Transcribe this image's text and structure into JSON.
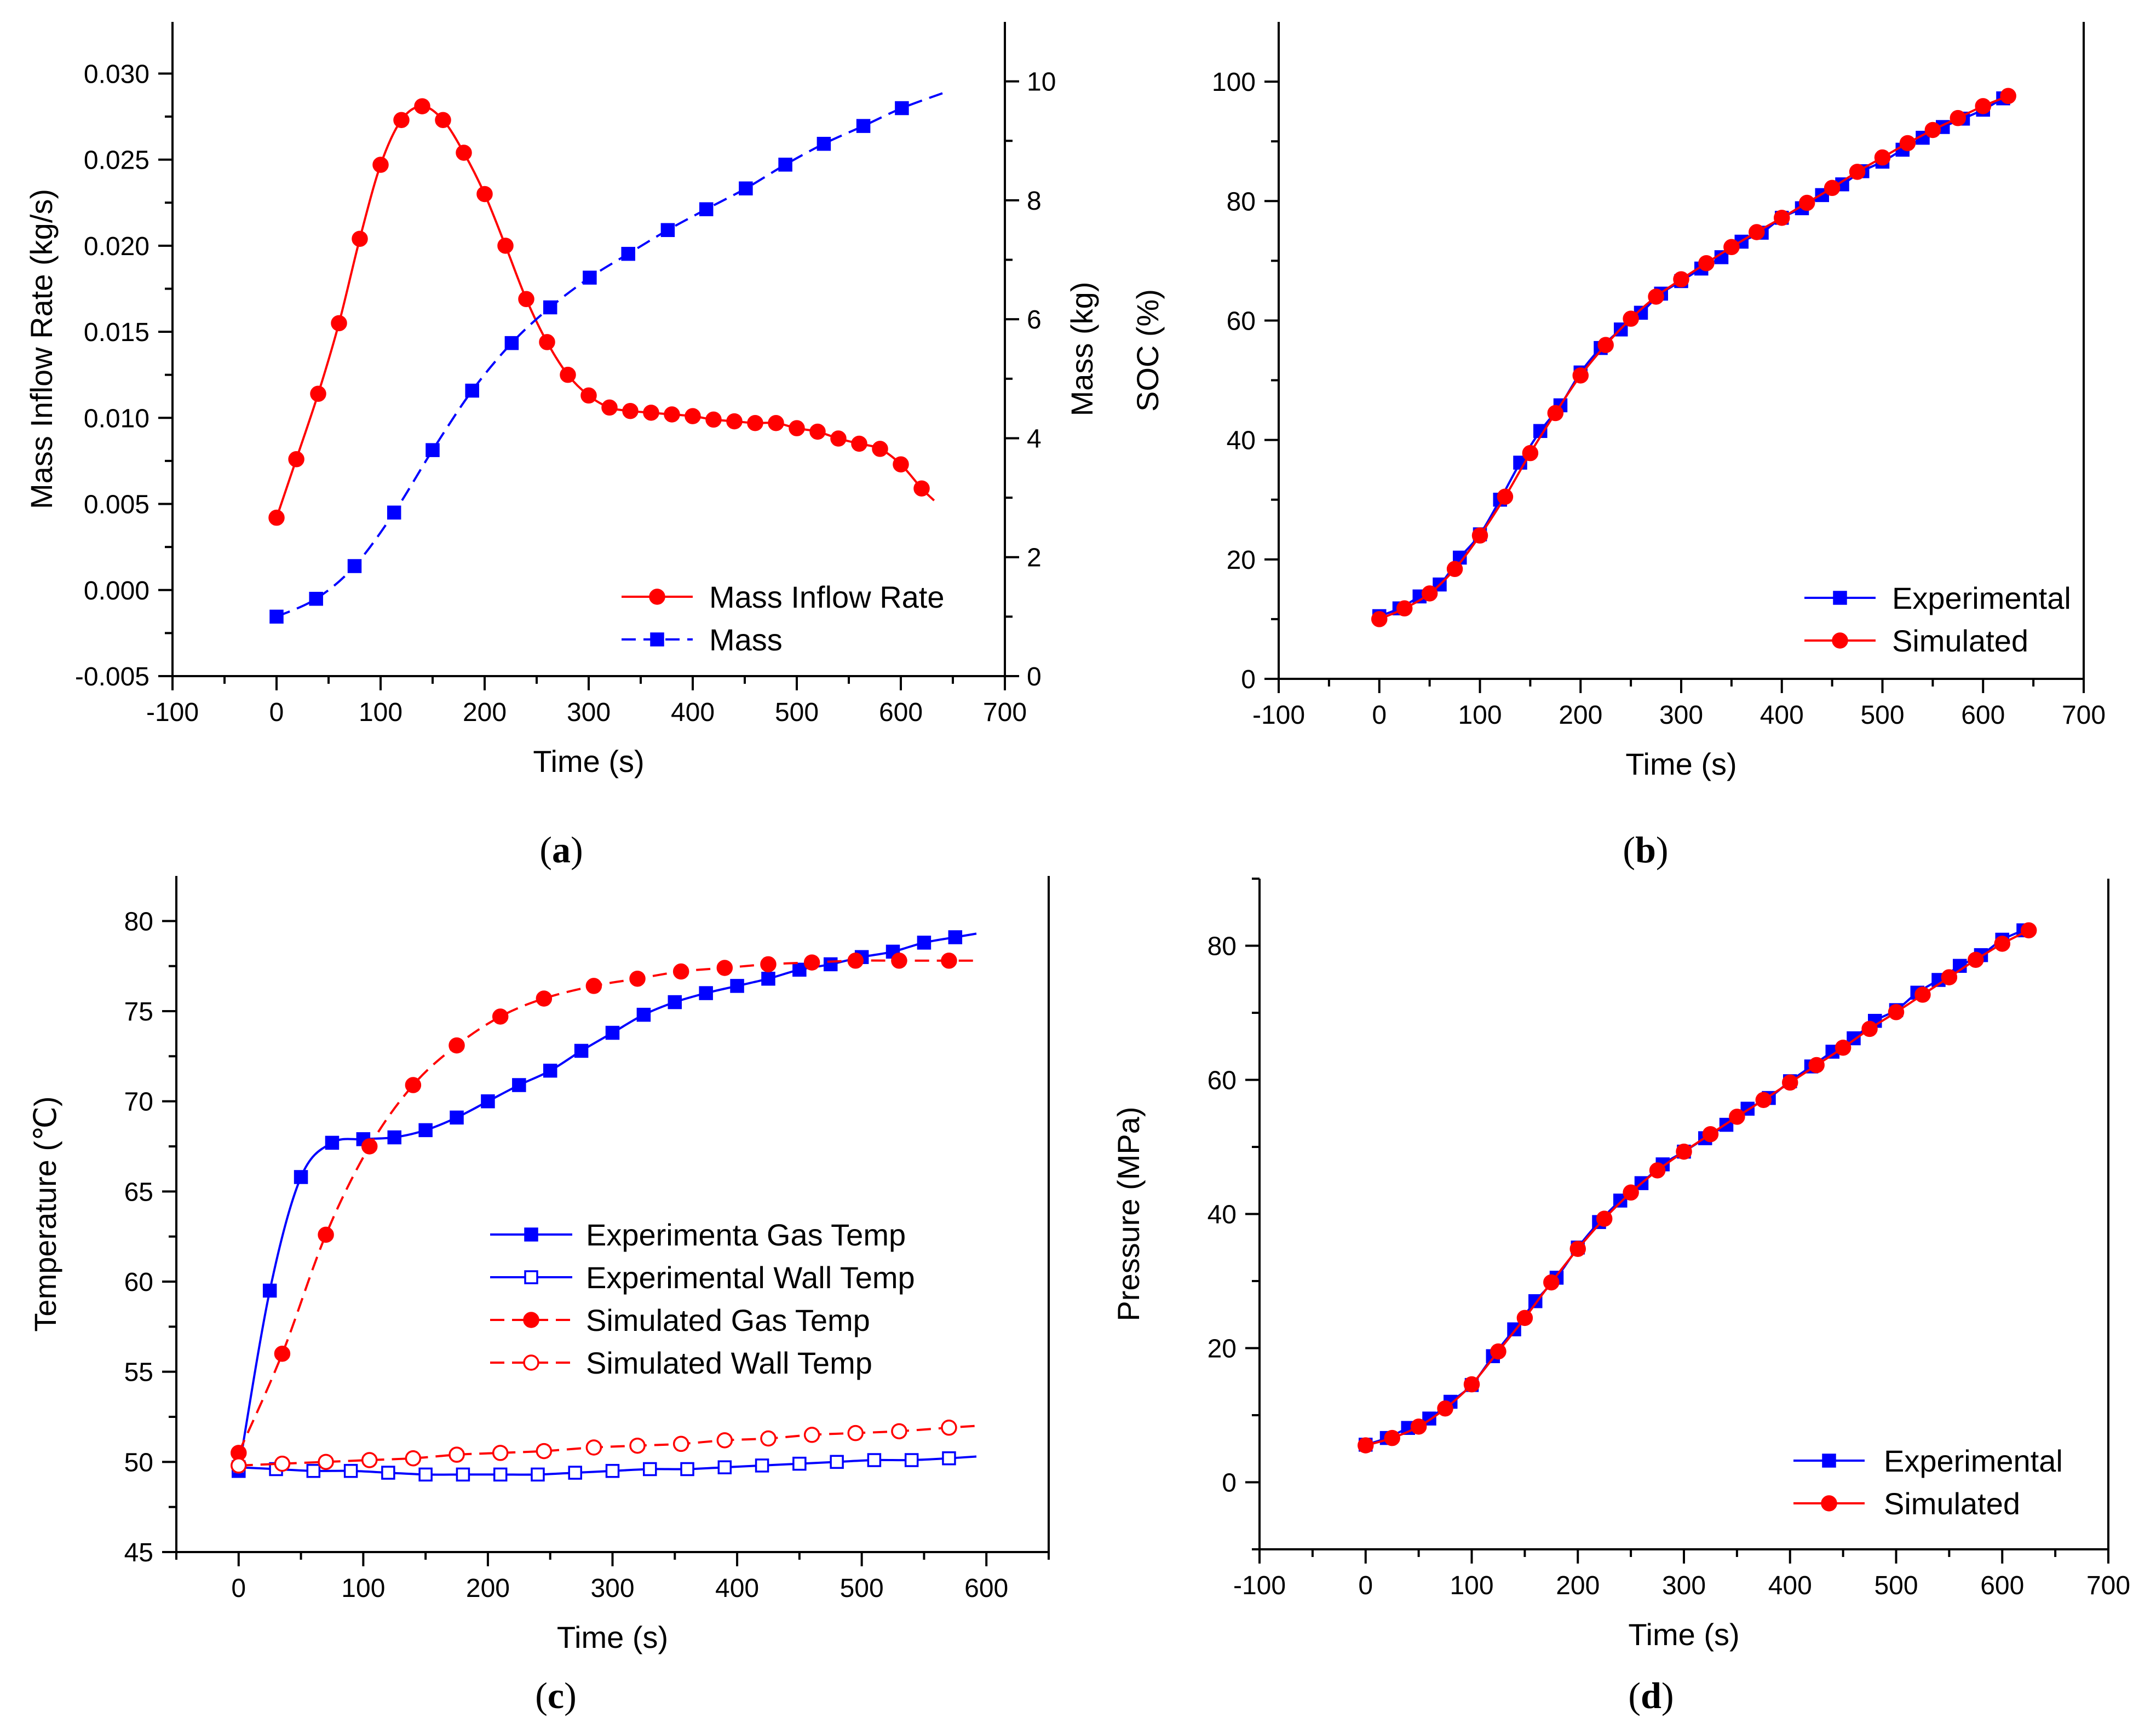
{
  "figure": {
    "panel_labels": [
      "a",
      "b",
      "c",
      "d"
    ]
  },
  "chart_data": [
    {
      "id": "a",
      "type": "line",
      "xlabel": "Time (s)",
      "ylabel": "Mass Inflow Rate (kg/s)",
      "ylabel_right": "Mass (kg)",
      "xlim": [
        -100,
        700
      ],
      "ylim": [
        -0.005,
        0.033
      ],
      "ylim_right": [
        0,
        11
      ],
      "xticks": [
        -100,
        0,
        100,
        200,
        300,
        400,
        500,
        600,
        700
      ],
      "yticks": [
        -0.005,
        0.0,
        0.005,
        0.01,
        0.015,
        0.02,
        0.025,
        0.03
      ],
      "ytick_labels": [
        "-0.005",
        "0.000",
        "0.005",
        "0.010",
        "0.015",
        "0.020",
        "0.025",
        "0.030"
      ],
      "yticks_right": [
        0,
        2,
        4,
        6,
        8,
        10
      ],
      "legend_position": "bottom-right",
      "series": [
        {
          "name": "Mass Inflow Rate",
          "color": "#ff0000",
          "marker": "circle",
          "filled": true,
          "dashed": false,
          "axis": "left",
          "x": [
            0,
            19,
            40,
            60,
            80,
            100,
            120,
            140,
            160,
            180,
            200,
            220,
            240,
            260,
            280,
            300,
            320,
            340,
            360,
            380,
            400,
            420,
            440,
            460,
            480,
            500,
            520,
            540,
            560,
            580,
            600,
            620
          ],
          "y": [
            0.0042,
            0.0076,
            0.0114,
            0.0155,
            0.0204,
            0.0247,
            0.0273,
            0.0281,
            0.0273,
            0.0254,
            0.023,
            0.02,
            0.0169,
            0.0144,
            0.0125,
            0.0113,
            0.0106,
            0.0104,
            0.0103,
            0.0102,
            0.0101,
            0.0099,
            0.0098,
            0.0097,
            0.0097,
            0.0094,
            0.0092,
            0.0088,
            0.0085,
            0.0082,
            0.0073,
            0.0059
          ],
          "line_extra": [
            [
              632,
              0.0052
            ]
          ]
        },
        {
          "name": "Mass",
          "color": "#0000ff",
          "marker": "square",
          "filled": true,
          "dashed": true,
          "axis": "right",
          "x": [
            0,
            38,
            75,
            113,
            150,
            188,
            226,
            263,
            301,
            338,
            376,
            413,
            451,
            489,
            526,
            564,
            601
          ],
          "y": [
            1.0,
            1.3,
            1.85,
            2.75,
            3.8,
            4.8,
            5.6,
            6.2,
            6.7,
            7.1,
            7.5,
            7.85,
            8.2,
            8.6,
            8.95,
            9.25,
            9.55
          ],
          "line_extra": [
            [
              640,
              9.8
            ]
          ]
        }
      ]
    },
    {
      "id": "b",
      "type": "line",
      "xlabel": "Time (s)",
      "ylabel": "SOC (%)",
      "xlim": [
        -100,
        700
      ],
      "ylim": [
        0,
        110
      ],
      "xticks": [
        -100,
        0,
        100,
        200,
        300,
        400,
        500,
        600,
        700
      ],
      "yticks": [
        0,
        20,
        40,
        60,
        80,
        100
      ],
      "legend_position": "bottom-right",
      "series": [
        {
          "name": "Experimental",
          "color": "#0000ff",
          "marker": "square",
          "filled": true,
          "dashed": false,
          "x": [
            0,
            20,
            40,
            60,
            80,
            100,
            120,
            140,
            160,
            180,
            200,
            220,
            240,
            260,
            280,
            300,
            320,
            340,
            360,
            380,
            400,
            420,
            440,
            460,
            480,
            500,
            520,
            540,
            560,
            580,
            600,
            620
          ],
          "y": [
            10.5,
            11.8,
            13.8,
            15.8,
            20.3,
            24.2,
            30.0,
            36.2,
            41.5,
            45.8,
            51.3,
            55.4,
            58.5,
            61.3,
            64.5,
            66.6,
            68.7,
            70.6,
            73.2,
            74.7,
            77.2,
            78.8,
            81.0,
            82.8,
            85.0,
            86.6,
            88.6,
            90.6,
            92.4,
            93.8,
            95.3,
            97.2
          ]
        },
        {
          "name": "Simulated",
          "color": "#ff0000",
          "marker": "circle",
          "filled": true,
          "dashed": false,
          "x": [
            0,
            25,
            50,
            75,
            100,
            125,
            150,
            175,
            200,
            225,
            250,
            275,
            300,
            325,
            350,
            375,
            400,
            425,
            450,
            475,
            500,
            525,
            550,
            575,
            600,
            625
          ],
          "y": [
            10.0,
            11.8,
            14.3,
            18.4,
            24.0,
            30.5,
            37.8,
            44.5,
            50.8,
            55.9,
            60.3,
            64.0,
            66.9,
            69.6,
            72.3,
            74.8,
            77.2,
            79.7,
            82.2,
            84.9,
            87.3,
            89.7,
            91.9,
            93.9,
            95.9,
            97.6
          ]
        }
      ]
    },
    {
      "id": "c",
      "type": "line",
      "xlabel": "Time (s)",
      "ylabel": "Temperature (℃)",
      "xlim": [
        -50,
        650
      ],
      "ylim": [
        45,
        82.5
      ],
      "xticks": [
        0,
        100,
        200,
        300,
        400,
        500,
        600
      ],
      "yticks": [
        45,
        50,
        55,
        60,
        65,
        70,
        75,
        80
      ],
      "legend_position": "center-right",
      "series": [
        {
          "name": "Experimenta Gas Temp",
          "color": "#0000ff",
          "marker": "square",
          "filled": true,
          "dashed": false,
          "x": [
            0,
            25,
            50,
            75,
            100,
            125,
            150,
            175,
            200,
            225,
            250,
            275,
            300,
            325,
            350,
            375,
            400,
            425,
            450,
            475,
            500,
            525,
            550,
            575
          ],
          "y": [
            49.5,
            59.5,
            65.8,
            67.7,
            67.9,
            68.0,
            68.4,
            69.1,
            70.0,
            70.9,
            71.7,
            72.8,
            73.8,
            74.8,
            75.5,
            76.0,
            76.4,
            76.8,
            77.3,
            77.6,
            78.0,
            78.3,
            78.8,
            79.1
          ],
          "line_extra": [
            [
              592,
              79.3
            ]
          ]
        },
        {
          "name": "Experimental Wall Temp",
          "color": "#0000ff",
          "marker": "square",
          "filled": false,
          "dashed": false,
          "x": [
            0,
            30,
            60,
            90,
            120,
            150,
            180,
            210,
            240,
            270,
            300,
            330,
            360,
            390,
            420,
            450,
            480,
            510,
            540,
            570
          ],
          "y": [
            49.7,
            49.6,
            49.5,
            49.5,
            49.4,
            49.3,
            49.3,
            49.3,
            49.3,
            49.4,
            49.5,
            49.6,
            49.6,
            49.7,
            49.8,
            49.9,
            50.0,
            50.1,
            50.1,
            50.2
          ],
          "line_extra": [
            [
              592,
              50.3
            ]
          ]
        },
        {
          "name": "Simulated Gas Temp",
          "color": "#ff0000",
          "marker": "circle",
          "filled": true,
          "dashed": true,
          "x": [
            0,
            35,
            70,
            105,
            140,
            175,
            210,
            245,
            285,
            320,
            355,
            390,
            425,
            460,
            495,
            530,
            570
          ],
          "y": [
            50.5,
            56.0,
            62.6,
            67.5,
            70.9,
            73.1,
            74.7,
            75.7,
            76.4,
            76.8,
            77.2,
            77.4,
            77.6,
            77.7,
            77.8,
            77.8,
            77.8
          ],
          "line_extra": [
            [
              592,
              77.8
            ]
          ]
        },
        {
          "name": "Simulated Wall Temp",
          "color": "#ff0000",
          "marker": "circle",
          "filled": false,
          "dashed": true,
          "x": [
            0,
            35,
            70,
            105,
            140,
            175,
            210,
            245,
            285,
            320,
            355,
            390,
            425,
            460,
            495,
            530,
            570
          ],
          "y": [
            49.8,
            49.9,
            50.0,
            50.1,
            50.2,
            50.4,
            50.5,
            50.6,
            50.8,
            50.9,
            51.0,
            51.2,
            51.3,
            51.5,
            51.6,
            51.7,
            51.9
          ],
          "line_extra": [
            [
              592,
              52.0
            ]
          ]
        }
      ]
    },
    {
      "id": "d",
      "type": "line",
      "xlabel": "Time (s)",
      "ylabel": "Pressure (MPa)",
      "xlim": [
        -100,
        700
      ],
      "ylim": [
        -10,
        90
      ],
      "xticks": [
        -100,
        0,
        100,
        200,
        300,
        400,
        500,
        600,
        700
      ],
      "yticks": [
        0,
        20,
        40,
        60,
        80
      ],
      "legend_position": "bottom-right",
      "series": [
        {
          "name": "Experimental",
          "color": "#0000ff",
          "marker": "square",
          "filled": true,
          "dashed": false,
          "x": [
            0,
            20,
            40,
            60,
            80,
            100,
            120,
            140,
            160,
            180,
            200,
            220,
            240,
            260,
            280,
            300,
            320,
            340,
            360,
            380,
            400,
            420,
            440,
            460,
            480,
            500,
            520,
            540,
            560,
            580,
            600,
            620
          ],
          "y": [
            5.6,
            6.6,
            8.1,
            9.5,
            12.0,
            14.5,
            18.8,
            22.8,
            27.0,
            30.5,
            35.0,
            38.8,
            42.0,
            44.6,
            47.4,
            49.3,
            51.3,
            53.3,
            55.7,
            57.3,
            59.8,
            62.0,
            64.2,
            66.2,
            68.8,
            70.4,
            73.0,
            74.9,
            77.0,
            78.6,
            80.9,
            82.3
          ]
        },
        {
          "name": "Simulated",
          "color": "#ff0000",
          "marker": "circle",
          "filled": true,
          "dashed": false,
          "x": [
            0,
            25,
            50,
            75,
            100,
            125,
            150,
            175,
            200,
            225,
            250,
            275,
            300,
            325,
            350,
            375,
            400,
            425,
            450,
            475,
            500,
            525,
            550,
            575,
            600,
            625
          ],
          "y": [
            5.5,
            6.6,
            8.3,
            11.0,
            14.6,
            19.5,
            24.5,
            29.8,
            34.8,
            39.3,
            43.2,
            46.5,
            49.3,
            51.9,
            54.5,
            57.0,
            59.6,
            62.2,
            64.8,
            67.6,
            70.1,
            72.7,
            75.3,
            77.9,
            80.3,
            82.3
          ]
        }
      ]
    }
  ]
}
